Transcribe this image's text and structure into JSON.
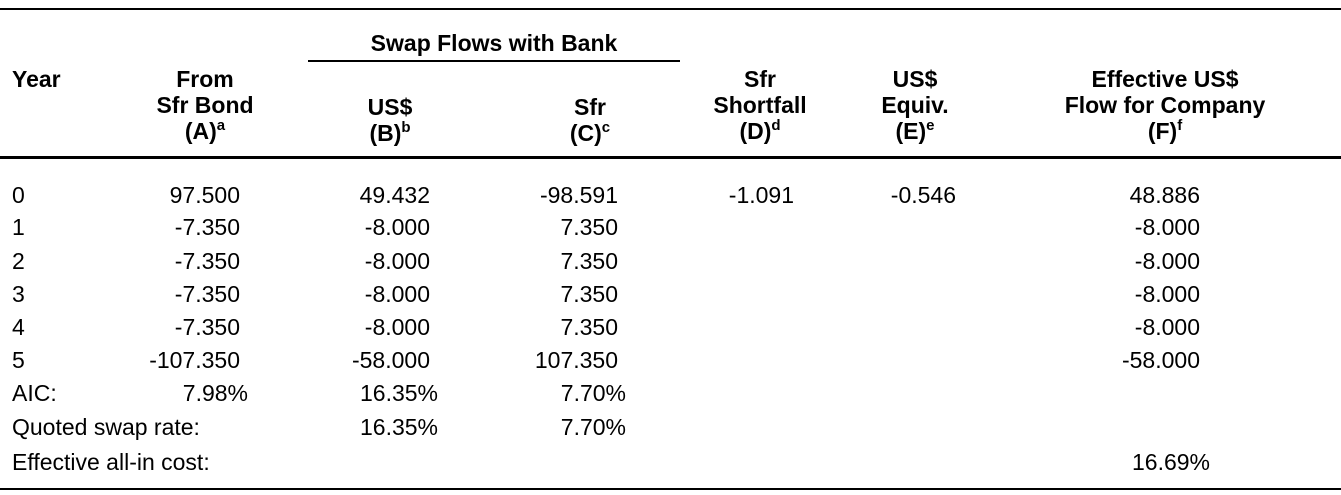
{
  "header": {
    "group": "Swap Flows with Bank",
    "year": "Year",
    "col_a": {
      "line1": "From",
      "line2": "Sfr Bond",
      "line3": "(A)",
      "sup": "a"
    },
    "col_b": {
      "line1": "US$",
      "line2": "(B)",
      "sup": "b"
    },
    "col_c": {
      "line1": "Sfr",
      "line2": "(C)",
      "sup": "c"
    },
    "col_d": {
      "line1": "Sfr",
      "line2": "Shortfall",
      "line3": "(D)",
      "sup": "d"
    },
    "col_e": {
      "line1": "US$",
      "line2": "Equiv.",
      "line3": "(E)",
      "sup": "e"
    },
    "col_f": {
      "line1": "Effective US$",
      "line2": "Flow for Company",
      "line3": "(F)",
      "sup": "f"
    }
  },
  "rows": [
    {
      "year": "0",
      "a": "97.500",
      "b": "49.432",
      "c": "-98.591",
      "d": "-1.091",
      "e": "-0.546",
      "f": "48.886"
    },
    {
      "year": "1",
      "a": "-7.350",
      "b": "-8.000",
      "c": "7.350",
      "d": "",
      "e": "",
      "f": "-8.000"
    },
    {
      "year": "2",
      "a": "-7.350",
      "b": "-8.000",
      "c": "7.350",
      "d": "",
      "e": "",
      "f": "-8.000"
    },
    {
      "year": "3",
      "a": "-7.350",
      "b": "-8.000",
      "c": "7.350",
      "d": "",
      "e": "",
      "f": "-8.000"
    },
    {
      "year": "4",
      "a": "-7.350",
      "b": "-8.000",
      "c": "7.350",
      "d": "",
      "e": "",
      "f": "-8.000"
    },
    {
      "year": "5",
      "a": "-107.350",
      "b": "-58.000",
      "c": "107.350",
      "d": "",
      "e": "",
      "f": "-58.000"
    }
  ],
  "summary": {
    "aic": {
      "label": "AIC:",
      "a": "7.98%",
      "b": "16.35%",
      "c": "7.70%"
    },
    "quoted": {
      "label": "Quoted swap rate:",
      "b": "16.35%",
      "c": "7.70%"
    },
    "effective": {
      "label": "Effective all-in cost:",
      "f": "16.69%"
    }
  }
}
